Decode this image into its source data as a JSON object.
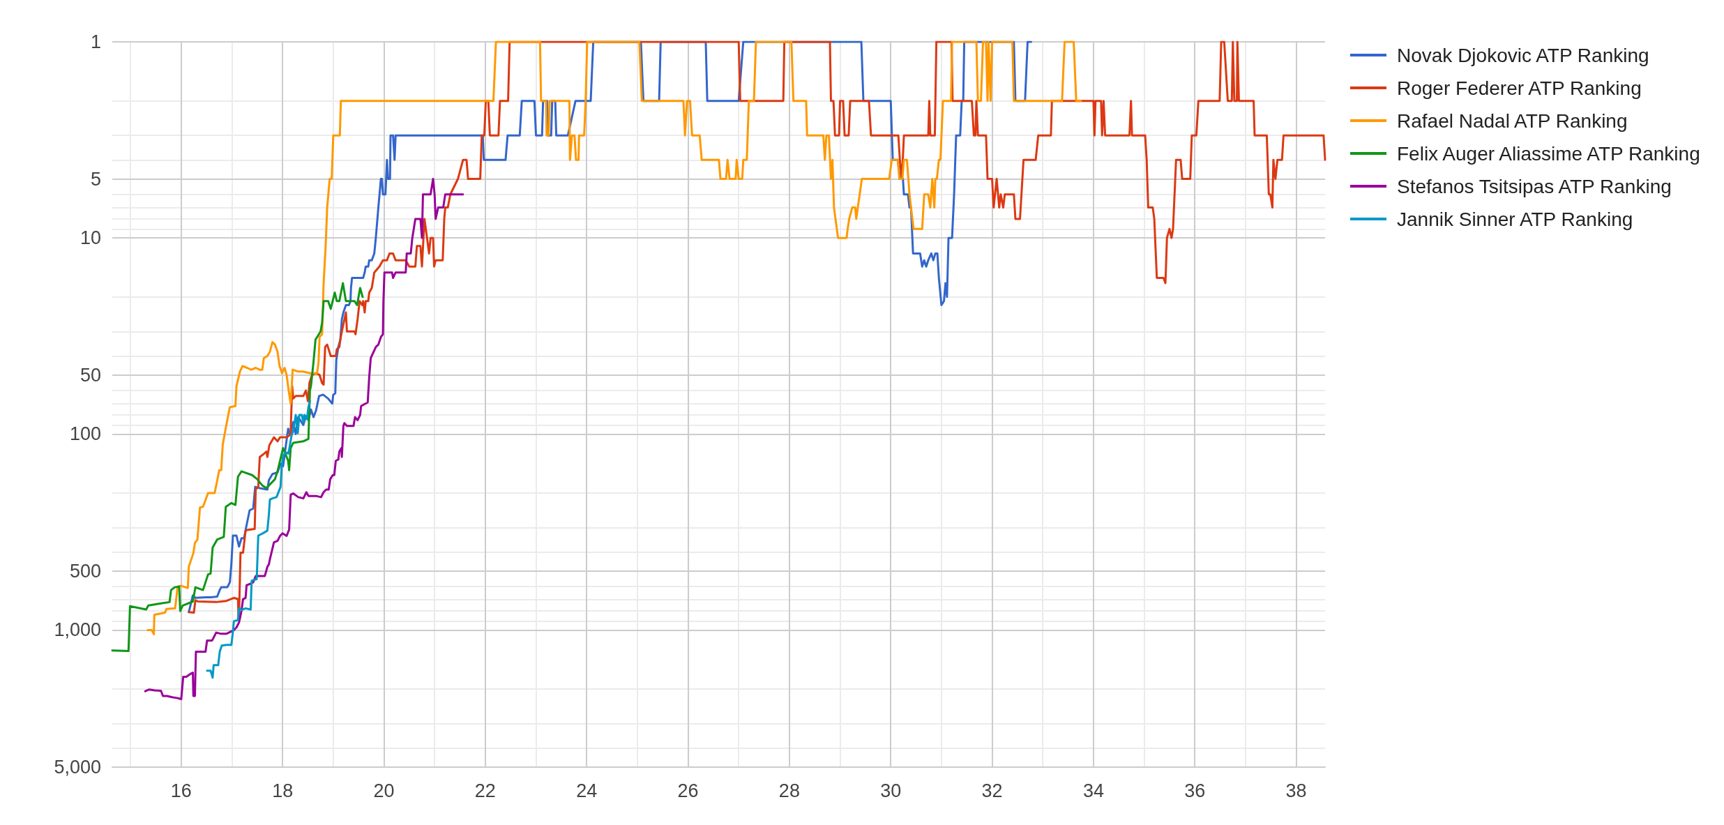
{
  "chart_data": {
    "type": "line",
    "log": "y",
    "grid": true,
    "legend": "top right",
    "xlim": [
      14.64,
      38.57
    ],
    "xticks": [
      {
        "value": 15,
        "label": null
      },
      16,
      {
        "value": 17,
        "label": null
      },
      18,
      {
        "value": 19,
        "label": null
      },
      20,
      {
        "value": 21,
        "label": null
      },
      22,
      {
        "value": 23,
        "label": null
      },
      24,
      {
        "value": 25,
        "label": null
      },
      26,
      {
        "value": 27,
        "label": null
      },
      28,
      {
        "value": 29,
        "label": null
      },
      30,
      {
        "value": 31,
        "label": null
      },
      32,
      {
        "value": 33,
        "label": null
      },
      34,
      {
        "value": 35,
        "label": null
      },
      36,
      {
        "value": 37,
        "label": null
      },
      38
    ],
    "ylim": [
      5000,
      1
    ],
    "yticks": [
      1,
      {
        "value": 2,
        "label": null
      },
      {
        "value": 3,
        "label": null
      },
      {
        "value": 4,
        "label": null
      },
      5,
      {
        "value": 6,
        "label": null
      },
      {
        "value": 7,
        "label": null
      },
      {
        "value": 8,
        "label": null
      },
      {
        "value": 9,
        "label": null
      },
      10,
      {
        "value": 20,
        "label": null
      },
      {
        "value": 30,
        "label": null
      },
      {
        "value": 40,
        "label": null
      },
      50,
      {
        "value": 60,
        "label": null
      },
      {
        "value": 70,
        "label": null
      },
      {
        "value": 80,
        "label": null
      },
      {
        "value": 90,
        "label": null
      },
      100,
      {
        "value": 200,
        "label": null
      },
      {
        "value": 300,
        "label": null
      },
      {
        "value": 400,
        "label": null
      },
      500,
      {
        "value": 600,
        "label": null
      },
      {
        "value": 700,
        "label": null
      },
      {
        "value": 800,
        "label": null
      },
      {
        "value": 900,
        "label": null
      },
      {
        "value": 1000,
        "label": "1,000"
      },
      {
        "value": 2000,
        "label": null
      },
      {
        "value": 3000,
        "label": null
      },
      {
        "value": 4000,
        "label": null
      },
      {
        "value": 5000,
        "label": "5,000"
      }
    ],
    "series": [
      {
        "name": "Novak Djokovic ATP Ranking",
        "color": "#3366cc",
        "x": [
          16.15,
          16.23,
          16.28,
          16.48,
          16.58,
          16.71,
          16.76,
          16.79,
          16.91,
          16.96,
          16.99,
          17.02,
          17.09,
          17.14,
          17.19,
          17.24,
          17.28,
          17.35,
          17.42,
          17.46,
          17.55,
          17.7,
          17.73,
          17.8,
          17.9,
          17.96,
          18.01,
          18.11,
          18.15,
          18.21,
          18.26,
          18.31,
          18.41,
          18.46,
          18.51,
          18.56,
          18.61,
          18.66,
          18.72,
          18.8,
          18.9,
          18.98,
          19.0,
          19.04,
          19.06,
          19.1,
          19.14,
          19.17,
          19.2,
          19.25,
          19.31,
          19.34,
          19.35,
          19.37,
          19.59,
          19.62,
          19.64,
          19.69,
          19.71,
          19.76,
          19.81,
          19.84,
          19.89,
          19.94,
          19.96,
          19.98,
          20.03,
          20.06,
          20.08,
          20.12,
          20.13,
          20.18,
          20.21,
          20.23,
          21.95,
          21.97,
          22.4,
          22.44,
          22.68,
          22.72,
          22.97,
          23.0,
          23.12,
          23.14,
          23.22,
          23.23,
          23.3,
          23.32,
          23.38,
          23.4,
          23.63,
          23.78,
          24.08,
          24.13,
          25.07,
          25.12,
          25.43,
          25.46,
          26.35,
          26.38,
          27.0,
          27.09,
          29.42,
          29.46,
          30.0,
          30.04,
          30.14,
          30.18,
          30.24,
          30.26,
          30.34,
          30.37,
          30.4,
          30.44,
          30.58,
          30.62,
          30.66,
          30.7,
          30.74,
          30.8,
          30.84,
          30.88,
          30.92,
          30.95,
          31.0,
          31.05,
          31.08,
          31.11,
          31.14,
          31.21,
          31.25,
          31.29,
          31.37,
          31.4,
          31.43,
          31.45,
          32.43,
          32.46,
          32.65,
          32.7,
          32.77
        ],
        "values": [
          810,
          665,
          685,
          680,
          680,
          675,
          625,
          605,
          605,
          570,
          460,
          330,
          330,
          375,
          340,
          340,
          300,
          245,
          240,
          186,
          189,
          192,
          172,
          160,
          157,
          142,
          146,
          94,
          101,
          87,
          100,
          82,
          90,
          81,
          85,
          75,
          82,
          76,
          64,
          63,
          66,
          70,
          63,
          62,
          42,
          36,
          33,
          26,
          24,
          22,
          22,
          21,
          18,
          16,
          16,
          15,
          14,
          14,
          13,
          13,
          12,
          10,
          7,
          5,
          5,
          6,
          6,
          4,
          5,
          5,
          3,
          3,
          4,
          3,
          3,
          4,
          4,
          3,
          3,
          2,
          2,
          3,
          3,
          2,
          2,
          3,
          3,
          2,
          2,
          3,
          3,
          2,
          2,
          1,
          1,
          2,
          2,
          1,
          1,
          2,
          2,
          1,
          1,
          2,
          2,
          4,
          4,
          5,
          5,
          6,
          6,
          7,
          7,
          12,
          12,
          14,
          13,
          14,
          13,
          12,
          13,
          12,
          12,
          16,
          22,
          21,
          17,
          20,
          10,
          10,
          6,
          3,
          3,
          2,
          2,
          1,
          1,
          2,
          2,
          1,
          1
        ]
      },
      {
        "name": "Roger Federer ATP Ranking",
        "color": "#dc3912",
        "x": [
          16.15,
          16.25,
          16.28,
          16.33,
          16.69,
          16.89,
          17.04,
          17.12,
          17.13,
          17.14,
          17.17,
          17.22,
          17.27,
          17.32,
          17.45,
          17.47,
          17.52,
          17.55,
          17.62,
          17.68,
          17.7,
          17.74,
          17.83,
          17.9,
          17.95,
          18.08,
          18.15,
          18.16,
          18.19,
          18.21,
          18.26,
          18.41,
          18.46,
          18.5,
          18.53,
          18.58,
          18.66,
          18.73,
          18.78,
          18.81,
          18.84,
          18.88,
          18.95,
          19.05,
          19.07,
          19.12,
          19.14,
          19.17,
          19.25,
          19.27,
          19.42,
          19.44,
          19.48,
          19.52,
          19.57,
          19.59,
          19.62,
          19.64,
          19.69,
          19.71,
          19.76,
          19.81,
          19.91,
          19.98,
          20.06,
          20.11,
          20.18,
          20.23,
          20.43,
          20.5,
          20.62,
          20.65,
          20.72,
          20.75,
          20.8,
          20.85,
          20.89,
          20.92,
          20.97,
          20.99,
          21.02,
          21.16,
          21.19,
          21.21,
          21.26,
          21.31,
          21.46,
          21.56,
          21.63,
          21.66,
          21.9,
          21.93,
          21.98,
          22.01,
          22.06,
          22.09,
          22.26,
          22.29,
          22.45,
          22.48,
          27.0,
          27.03,
          27.88,
          27.9,
          28.8,
          28.82,
          28.87,
          28.9,
          28.98,
          29.0,
          29.06,
          29.09,
          29.17,
          29.2,
          29.57,
          29.61,
          30.15,
          30.18,
          30.22,
          30.26,
          30.74,
          30.76,
          30.78,
          30.87,
          30.9,
          31.2,
          31.22,
          31.6,
          31.64,
          31.67,
          31.69,
          31.72,
          31.88,
          31.91,
          32.0,
          32.03,
          32.09,
          32.14,
          32.17,
          32.22,
          32.25,
          32.43,
          32.46,
          32.55,
          32.62,
          32.86,
          32.91,
          33.16,
          33.18,
          34.0,
          34.02,
          34.04,
          34.15,
          34.17,
          34.2,
          34.23,
          34.71,
          34.74,
          34.76,
          35.02,
          35.05,
          35.08,
          35.17,
          35.2,
          35.25,
          35.38,
          35.42,
          35.45,
          35.5,
          35.54,
          35.57,
          35.63,
          35.72,
          35.75,
          35.91,
          35.94,
          36.03,
          36.07,
          36.49,
          36.52,
          36.58,
          36.65,
          36.73,
          36.75,
          36.78,
          36.83,
          36.84,
          36.87,
          37.16,
          37.18,
          37.42,
          37.46,
          37.49,
          37.53,
          37.55,
          37.59,
          37.63,
          37.72,
          37.75,
          38.54,
          38.57
        ],
        "values": [
          810,
          815,
          705,
          715,
          720,
          710,
          685,
          695,
          860,
          870,
          403,
          403,
          311,
          308,
          305,
          192,
          186,
          131,
          127,
          123,
          131,
          114,
          104,
          109,
          104,
          104,
          101,
          96,
          57,
          66,
          64,
          64,
          60,
          68,
          55,
          50,
          49,
          50,
          55,
          56,
          36,
          35,
          40,
          40,
          37,
          36,
          33,
          30,
          24,
          30,
          30,
          31,
          26,
          21,
          22,
          21,
          24,
          21,
          21,
          19,
          18,
          15,
          14,
          13,
          13,
          12,
          12,
          13,
          13,
          14,
          14,
          11,
          11,
          14,
          8,
          10,
          12,
          10,
          10,
          14,
          13,
          13,
          8,
          7,
          7,
          6,
          5,
          4,
          4,
          5,
          5,
          3,
          3,
          2,
          2,
          3,
          3,
          2,
          2,
          1,
          1,
          2,
          2,
          1,
          1,
          2,
          2,
          3,
          3,
          2,
          2,
          3,
          3,
          2,
          2,
          3,
          3,
          4,
          5,
          3,
          3,
          2,
          3,
          3,
          1,
          1,
          2,
          2,
          3,
          3,
          2,
          3,
          3,
          5,
          5,
          7,
          5,
          7,
          6,
          7,
          6,
          6,
          8,
          8,
          4,
          4,
          3,
          3,
          2,
          2,
          3,
          2,
          2,
          3,
          2,
          3,
          3,
          2,
          3,
          3,
          4,
          7,
          7,
          8,
          16,
          16,
          17,
          10,
          9,
          10,
          9,
          4,
          4,
          5,
          5,
          3,
          3,
          2,
          2,
          1,
          1,
          2,
          2,
          1,
          2,
          2,
          1,
          2,
          2,
          3,
          3,
          6,
          6,
          7,
          4,
          5,
          4,
          4,
          3,
          3,
          4
        ]
      },
      {
        "name": "Rafael Nadal ATP Ranking",
        "color": "#ff9900",
        "x": [
          15.34,
          15.42,
          15.46,
          15.47,
          15.68,
          15.71,
          15.88,
          15.93,
          16.0,
          16.13,
          16.15,
          16.24,
          16.27,
          16.32,
          16.37,
          16.43,
          16.53,
          16.66,
          16.7,
          16.75,
          16.79,
          16.82,
          16.89,
          16.95,
          16.96,
          17.07,
          17.09,
          17.16,
          17.21,
          17.3,
          17.38,
          17.47,
          17.55,
          17.6,
          17.63,
          17.7,
          17.75,
          17.8,
          17.85,
          17.9,
          17.94,
          17.99,
          18.04,
          18.08,
          18.12,
          18.16,
          18.2,
          18.3,
          18.4,
          18.55,
          18.68,
          18.71,
          18.73,
          18.78,
          18.81,
          18.85,
          18.88,
          18.93,
          18.97,
          19.0,
          19.13,
          19.15,
          22.16,
          22.21,
          23.08,
          23.1,
          23.2,
          23.21,
          23.25,
          23.27,
          23.66,
          23.67,
          23.71,
          23.76,
          23.79,
          23.84,
          23.85,
          23.95,
          23.98,
          24.01,
          25.04,
          25.09,
          25.91,
          25.94,
          25.98,
          26.04,
          26.08,
          26.23,
          26.27,
          26.61,
          26.64,
          26.75,
          26.78,
          26.82,
          26.94,
          26.96,
          27.0,
          27.07,
          27.09,
          27.16,
          27.2,
          27.3,
          27.34,
          28.04,
          28.08,
          28.33,
          28.35,
          28.67,
          28.7,
          28.73,
          28.78,
          28.82,
          28.85,
          28.88,
          28.96,
          29.13,
          29.15,
          29.18,
          29.24,
          29.3,
          29.32,
          29.35,
          29.43,
          29.97,
          30.02,
          30.14,
          30.17,
          30.23,
          30.26,
          30.32,
          30.37,
          30.4,
          30.45,
          30.62,
          30.66,
          30.74,
          30.78,
          30.82,
          30.86,
          30.88,
          30.91,
          30.95,
          30.98,
          31.03,
          31.19,
          31.21,
          31.69,
          31.72,
          31.78,
          31.82,
          31.88,
          31.91,
          31.93,
          31.97,
          32.0,
          32.4,
          32.43,
          33.38,
          33.43,
          33.61,
          33.66,
          33.75
        ],
        "values": [
          1000,
          1000,
          1050,
          835,
          815,
          780,
          775,
          600,
          595,
          610,
          475,
          405,
          360,
          345,
          237,
          235,
          200,
          200,
          178,
          153,
          153,
          113,
          90,
          75,
          73,
          72,
          57,
          48,
          45,
          46,
          47,
          46,
          47,
          47,
          41,
          40,
          38,
          34,
          35,
          38,
          45,
          49,
          46,
          50,
          60,
          70,
          47,
          48,
          48,
          49,
          49,
          43,
          32,
          31,
          17,
          11,
          7,
          5,
          5,
          3,
          3,
          2,
          2,
          1,
          1,
          2,
          2,
          3,
          3,
          2,
          2,
          4,
          3,
          3,
          4,
          4,
          3,
          3,
          2,
          1,
          1,
          2,
          2,
          3,
          2,
          2,
          3,
          3,
          4,
          4,
          5,
          5,
          4,
          5,
          5,
          4,
          5,
          5,
          4,
          4,
          2,
          2,
          1,
          1,
          2,
          2,
          3,
          3,
          4,
          3,
          3,
          5,
          4,
          7,
          10,
          10,
          9,
          8,
          7,
          7,
          8,
          7,
          5,
          5,
          4,
          4,
          5,
          5,
          4,
          4,
          6,
          7,
          9,
          9,
          6,
          6,
          7,
          5,
          7,
          5,
          5,
          4,
          4,
          2,
          2,
          1,
          1,
          2,
          2,
          1,
          1,
          2,
          1,
          2,
          1,
          1,
          2,
          2,
          1,
          1,
          2,
          2
        ]
      },
      {
        "name": "Felix Auger Aliassime ATP Ranking",
        "color": "#109618",
        "x": [
          14.64,
          14.96,
          14.99,
          15.31,
          15.35,
          15.62,
          15.77,
          15.8,
          15.87,
          15.96,
          15.98,
          16.03,
          16.23,
          16.28,
          16.43,
          16.53,
          16.58,
          16.62,
          16.71,
          16.84,
          16.88,
          16.99,
          17.07,
          17.12,
          17.19,
          17.4,
          17.5,
          17.6,
          17.68,
          17.85,
          17.9,
          18.01,
          18.11,
          18.13,
          18.16,
          18.21,
          18.41,
          18.51,
          18.54,
          18.56,
          18.61,
          18.65,
          18.75,
          18.78,
          18.81,
          18.9,
          18.95,
          19.03,
          19.07,
          19.12,
          19.19,
          19.25,
          19.42,
          19.47,
          19.53,
          19.58
        ],
        "values": [
          1270,
          1280,
          755,
          785,
          750,
          730,
          720,
          625,
          605,
          600,
          800,
          750,
          715,
          605,
          625,
          520,
          515,
          380,
          345,
          335,
          235,
          225,
          230,
          165,
          155,
          162,
          170,
          183,
          189,
          170,
          155,
          118,
          137,
          153,
          118,
          111,
          109,
          106,
          60,
          57,
          43,
          33,
          30,
          27,
          21,
          21,
          23,
          19,
          21,
          21,
          17,
          21,
          21,
          22,
          18,
          20
        ]
      },
      {
        "name": "Stefanos Tsitsipas ATP Ranking",
        "color": "#990099",
        "x": [
          15.29,
          15.37,
          15.48,
          15.6,
          15.64,
          15.72,
          15.82,
          15.92,
          16.0,
          16.04,
          16.1,
          16.18,
          16.23,
          16.24,
          16.27,
          16.29,
          16.48,
          16.51,
          16.61,
          16.69,
          16.79,
          16.89,
          16.94,
          16.99,
          17.04,
          17.09,
          17.14,
          17.17,
          17.19,
          17.22,
          17.27,
          17.29,
          17.37,
          17.42,
          17.47,
          17.57,
          17.65,
          17.7,
          17.73,
          17.75,
          17.83,
          17.9,
          17.95,
          18.0,
          18.08,
          18.13,
          18.16,
          18.21,
          18.31,
          18.41,
          18.47,
          18.51,
          18.66,
          18.76,
          18.81,
          18.86,
          18.91,
          18.94,
          18.99,
          19.02,
          19.05,
          19.1,
          19.12,
          19.16,
          19.17,
          19.2,
          19.22,
          19.27,
          19.4,
          19.43,
          19.48,
          19.53,
          19.55,
          19.68,
          19.71,
          19.74,
          19.84,
          19.89,
          19.94,
          19.98,
          19.99,
          20.01,
          20.16,
          20.18,
          20.23,
          20.43,
          20.45,
          20.53,
          20.56,
          20.62,
          20.72,
          20.75,
          20.77,
          20.92,
          20.97,
          21.0,
          21.02,
          21.07,
          21.17,
          21.21,
          21.56
        ],
        "values": [
          2050,
          2010,
          2030,
          2040,
          2170,
          2170,
          2200,
          2220,
          2250,
          1730,
          1730,
          1675,
          1650,
          2170,
          2170,
          1290,
          1290,
          1130,
          1130,
          1030,
          1045,
          1045,
          1030,
          1015,
          1000,
          970,
          915,
          845,
          795,
          695,
          685,
          590,
          580,
          570,
          530,
          530,
          530,
          476,
          462,
          435,
          357,
          351,
          331,
          321,
          331,
          307,
          204,
          201,
          210,
          213,
          198,
          207,
          207,
          210,
          198,
          192,
          192,
          170,
          162,
          162,
          137,
          135,
          123,
          118,
          131,
          91,
          88,
          91,
          91,
          82,
          85,
          80,
          72,
          69,
          51,
          41,
          36,
          35,
          32,
          31,
          21,
          15,
          15,
          16,
          15,
          15,
          12,
          12,
          10,
          8,
          8,
          10,
          6,
          6,
          5,
          6,
          8,
          7,
          7,
          6,
          6
        ]
      },
      {
        "name": "Jannik Sinner ATP Ranking",
        "color": "#0099c6",
        "x": [
          16.51,
          16.58,
          16.62,
          16.64,
          16.73,
          16.76,
          16.8,
          16.89,
          16.99,
          17.02,
          17.04,
          17.12,
          17.14,
          17.19,
          17.27,
          17.37,
          17.39,
          17.49,
          17.52,
          17.57,
          17.62,
          17.7,
          17.73,
          17.75,
          17.8,
          17.88,
          17.9,
          17.96,
          17.98,
          18.01,
          18.06,
          18.11,
          18.13,
          18.18,
          18.21,
          18.26,
          18.3,
          18.33,
          18.38,
          18.41,
          18.43,
          18.48,
          18.51,
          18.54
        ],
        "values": [
          1610,
          1610,
          1750,
          1510,
          1510,
          1290,
          1200,
          1190,
          1190,
          1020,
          900,
          890,
          775,
          790,
          775,
          785,
          560,
          550,
          330,
          325,
          320,
          311,
          257,
          216,
          213,
          210,
          204,
          186,
          150,
          129,
          124,
          126,
          120,
          101,
          97,
          80,
          99,
          80,
          80,
          87,
          80,
          84,
          73,
          68
        ]
      }
    ]
  }
}
